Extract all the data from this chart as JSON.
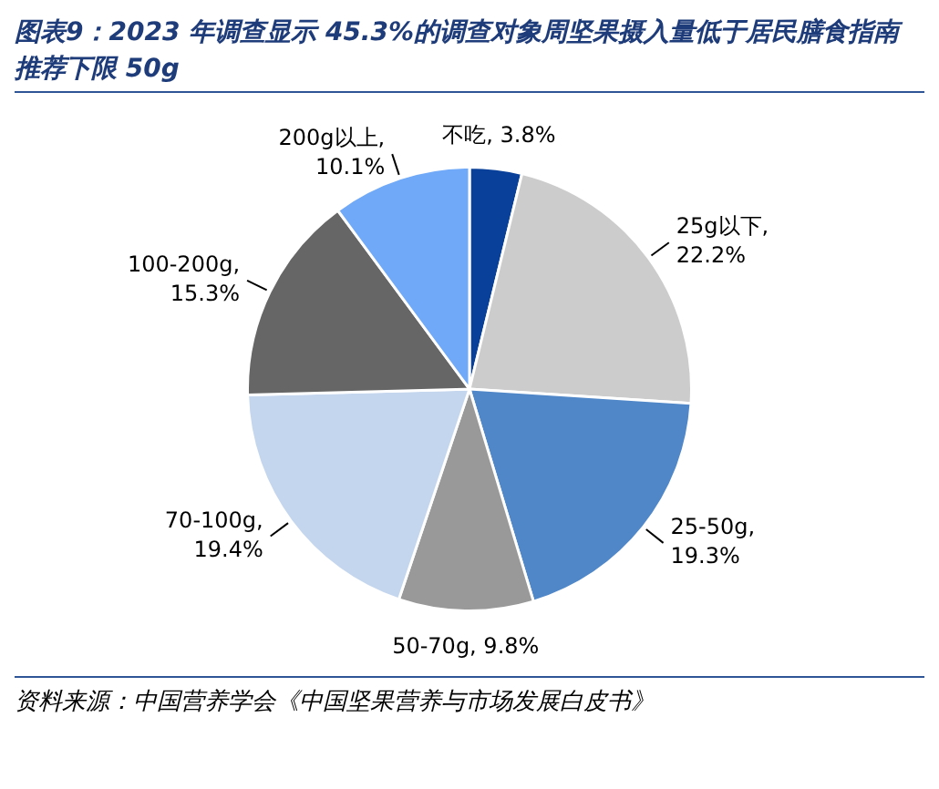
{
  "chart_data": {
    "type": "pie",
    "title": "图表9：2023 年调查显示 45.3%的调查对象周坚果摄入量低于居民膳食指南推荐下限 50g",
    "categories": [
      "不吃",
      "25g以下",
      "25-50g",
      "50-70g",
      "70-100g",
      "100-200g",
      "200g以上"
    ],
    "values": [
      3.8,
      22.2,
      19.3,
      9.8,
      19.4,
      15.3,
      10.1
    ],
    "colors": [
      "#08409a",
      "#cccccc",
      "#5087c8",
      "#999999",
      "#c4d6ee",
      "#666666",
      "#70a9f7"
    ],
    "value_labels": [
      ", 3.8%",
      ", 22.2%",
      ", 19.3%",
      ", 9.8%",
      ", 19.4%",
      ", 15.3%",
      ", 10.1%"
    ],
    "legend": false,
    "annotations": [
      "资料来源：中国营养学会《中国坚果营养与市场发展白皮书》"
    ]
  }
}
